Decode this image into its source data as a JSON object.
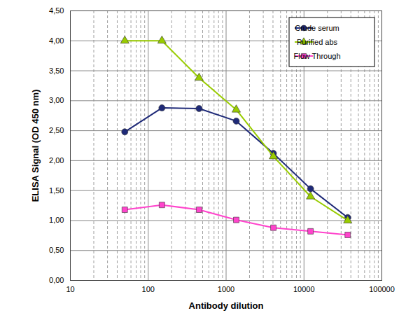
{
  "chart_data": {
    "type": "line",
    "x_label": "Antibody dilution",
    "y_label": "ELISA Signal (OD 450 nm)",
    "log": "x",
    "grid": true,
    "legend": "top-right",
    "xlim": [
      10,
      100000
    ],
    "xticks": [
      10,
      100,
      1000,
      10000,
      100000
    ],
    "ylim": [
      0,
      4.5
    ],
    "yticks": [
      {
        "value": 0,
        "label": "0,00"
      },
      {
        "value": 0.5,
        "label": "0,50"
      },
      {
        "value": 1,
        "label": "1,00"
      },
      {
        "value": 1.5,
        "label": "1,50"
      },
      {
        "value": 2,
        "label": "2,00"
      },
      {
        "value": 2.5,
        "label": "2,50"
      },
      {
        "value": 3,
        "label": "3,00"
      },
      {
        "value": 3.5,
        "label": "3,50"
      },
      {
        "value": 4,
        "label": "4,00"
      },
      {
        "value": 4.5,
        "label": "4,50"
      }
    ],
    "x": [
      50,
      150,
      450,
      1350,
      4050,
      12150,
      36450
    ],
    "series": [
      {
        "name": "Crude serum",
        "color": "#1f2a78",
        "marker": "circle",
        "line_style": "solid",
        "values": [
          2.48,
          2.88,
          2.87,
          2.66,
          2.12,
          1.53,
          1.05
        ]
      },
      {
        "name": "Purified abs",
        "color": "#99cc00",
        "marker": "triangle",
        "line_style": "solid",
        "values": [
          4.0,
          4.0,
          3.38,
          2.85,
          2.07,
          1.4,
          1.0
        ]
      },
      {
        "name": "Flow Through",
        "color": "#ff44cc",
        "marker": "square",
        "line_style": "solid",
        "values": [
          1.18,
          1.26,
          1.18,
          1.01,
          0.88,
          0.82,
          0.76
        ]
      }
    ]
  }
}
